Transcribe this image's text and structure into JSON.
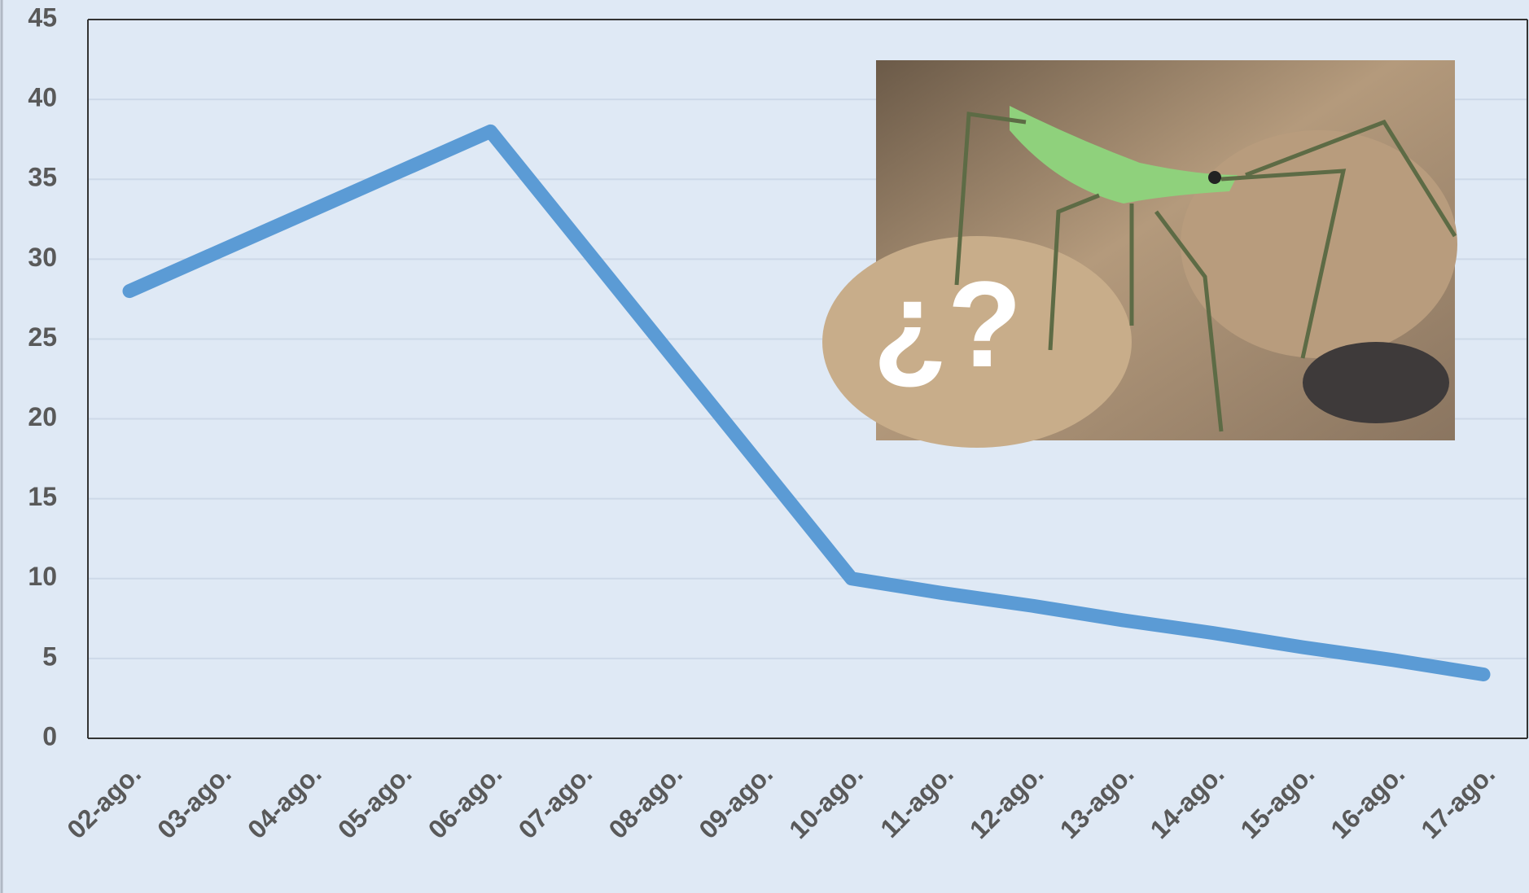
{
  "chart_data": {
    "type": "line",
    "categories": [
      "02-ago.",
      "03-ago.",
      "04-ago.",
      "05-ago.",
      "06-ago.",
      "07-ago.",
      "08-ago.",
      "09-ago.",
      "10-ago.",
      "11-ago.",
      "12-ago.",
      "13-ago.",
      "14-ago.",
      "15-ago.",
      "16-ago.",
      "17-ago."
    ],
    "values": [
      28,
      30.5,
      33,
      35.5,
      38,
      31,
      24,
      17,
      10,
      9.1,
      8.3,
      7.4,
      6.6,
      5.7,
      4.9,
      4
    ],
    "color": "#5b9bd5",
    "ylim": [
      0,
      45
    ],
    "yticks": [
      0,
      5,
      10,
      15,
      20,
      25,
      30,
      35,
      40,
      45
    ],
    "grid": true,
    "annotation": "¿?"
  }
}
